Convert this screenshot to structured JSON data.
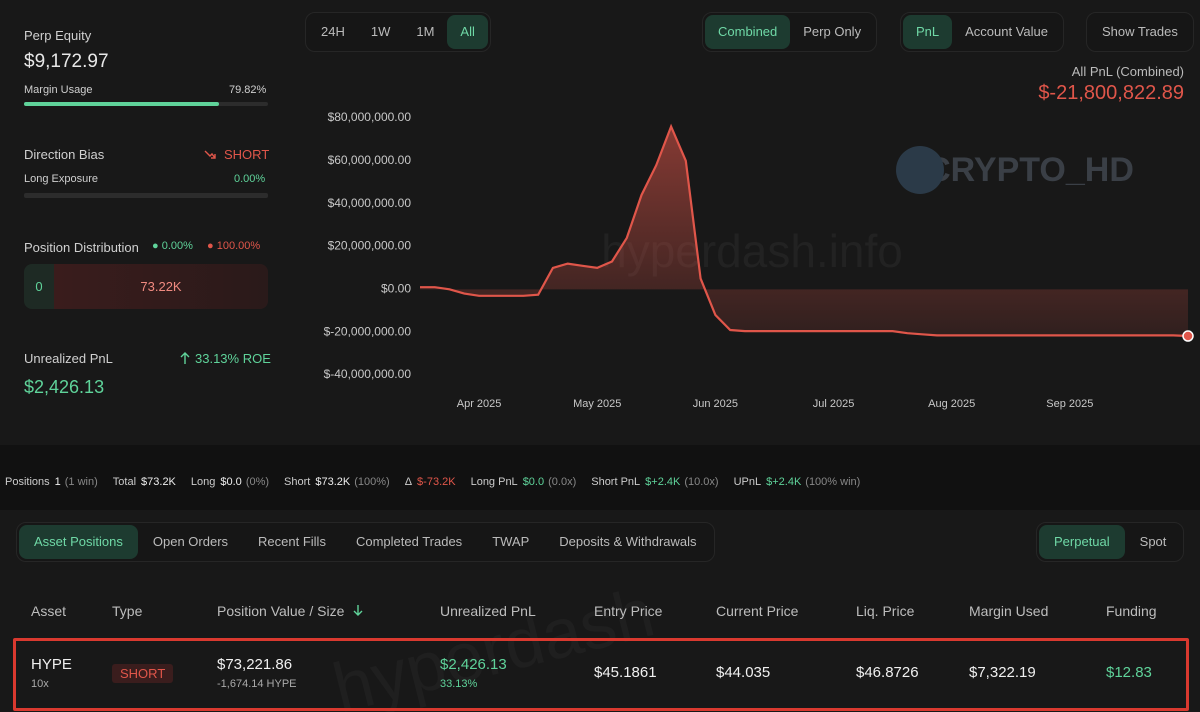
{
  "left": {
    "equity_label": "Perp Equity",
    "equity": "$9,172.97",
    "margin_label": "Margin Usage",
    "margin_usage": {
      "value": 79.82,
      "label": "79.82%"
    },
    "bias_label": "Direction Bias",
    "bias": "SHORT",
    "long_exposure_label": "Long Exposure",
    "long_exposure": {
      "value": 0,
      "label": "0.00%"
    },
    "distribution_label": "Position Distribution",
    "long_share": {
      "value": 0,
      "label": "0.00%"
    },
    "short_share": {
      "value": 100,
      "label": "100.00%"
    },
    "long_size": "0",
    "short_size": "73.22K",
    "upnl_label": "Unrealized PnL",
    "roe": "33.13% ROE",
    "upnl": "$2,426.13"
  },
  "controls": {
    "ranges": [
      "24H",
      "1W",
      "1M",
      "All"
    ],
    "active_range": 3,
    "modes": [
      "Combined",
      "Perp Only"
    ],
    "active_mode": 0,
    "metrics": [
      "PnL",
      "Account Value"
    ],
    "active_metric": 0,
    "show_trades": "Show Trades"
  },
  "chart_data": {
    "type": "line",
    "subtitle": "All PnL (Combined)",
    "headline": "$-21,800,822.89",
    "watermarks": [
      "CRYPTO_HD",
      "hyperdash.info"
    ],
    "color": "#e0564a",
    "categories": [
      null,
      null,
      null,
      null,
      "Apr 2025",
      null,
      null,
      null,
      null,
      null,
      null,
      null,
      "May 2025",
      null,
      null,
      null,
      null,
      null,
      null,
      null,
      "Jun 2025",
      null,
      null,
      null,
      null,
      null,
      null,
      null,
      "Jul 2025",
      null,
      null,
      null,
      null,
      null,
      null,
      null,
      "Aug 2025",
      null,
      null,
      null,
      null,
      null,
      null,
      null,
      "Sep 2025",
      null,
      null,
      null,
      null,
      null,
      null,
      null,
      null
    ],
    "values": [
      1000000,
      1000000,
      0,
      -2000000,
      -3000000,
      -3000000,
      -3000000,
      -3000000,
      -2500000,
      10000000,
      12000000,
      11000000,
      10000000,
      13000000,
      24000000,
      44000000,
      58000000,
      76000000,
      60000000,
      5000000,
      -12000000,
      -19000000,
      -19500000,
      -19500000,
      -19500000,
      -19500000,
      -19500000,
      -19500000,
      -19500000,
      -19500000,
      -19500000,
      -19500000,
      -19500000,
      -20500000,
      -21000000,
      -21500000,
      -21500000,
      -21500000,
      -21500000,
      -21500000,
      -21500000,
      -21500000,
      -21500000,
      -21500000,
      -21500000,
      -21500000,
      -21500000,
      -21500000,
      -21500000,
      -21500000,
      -21500000,
      -21500000,
      -21800000
    ],
    "ylim": [
      -40000000,
      80000000
    ],
    "yticks": [
      {
        "value": 80000000,
        "label": "$80,000,000.00"
      },
      {
        "value": 60000000,
        "label": "$60,000,000.00"
      },
      {
        "value": 40000000,
        "label": "$40,000,000.00"
      },
      {
        "value": 20000000,
        "label": "$20,000,000.00"
      },
      {
        "value": 0,
        "label": "$0.00"
      },
      {
        "value": -20000000,
        "label": "$-20,000,000.00"
      },
      {
        "value": -40000000,
        "label": "$-40,000,000.00"
      }
    ]
  },
  "summary": [
    {
      "label": "Positions",
      "value": "1",
      "note": "(1 win)"
    },
    {
      "label": "Total",
      "value": "$73.2K"
    },
    {
      "label": "Long",
      "value": "$0.0",
      "note": "(0%)"
    },
    {
      "label": "Short",
      "value": "$73.2K",
      "note": "(100%)"
    },
    {
      "label": "Δ",
      "value": "$-73.2K",
      "color": "#e0564a"
    },
    {
      "label": "Long PnL",
      "value": "$0.0",
      "note": "(0.0x)",
      "color": "#5fd39a"
    },
    {
      "label": "Short PnL",
      "value": "$+2.4K",
      "note": "(10.0x)",
      "color": "#5fd39a"
    },
    {
      "label": "UPnL",
      "value": "$+2.4K",
      "note": "(100% win)",
      "color": "#5fd39a"
    }
  ],
  "tabs": {
    "items": [
      "Asset Positions",
      "Open Orders",
      "Recent Fills",
      "Completed Trades",
      "TWAP",
      "Deposits & Withdrawals"
    ],
    "active": 0,
    "markets": [
      "Perpetual",
      "Spot"
    ],
    "active_market": 0
  },
  "table": {
    "watermark": "hyperdash",
    "headers": [
      "Asset",
      "Type",
      "Position Value / Size",
      "Unrealized PnL",
      "Entry Price",
      "Current Price",
      "Liq. Price",
      "Margin Used",
      "Funding"
    ],
    "rows": [
      [
        {
          "text": "HYPE",
          "sub": "10x"
        },
        {
          "text": "SHORT"
        },
        {
          "text": "$73,221.86",
          "sub": "-1,674.14 HYPE"
        },
        {
          "text": "$2,426.13",
          "sub": "33.13%"
        },
        {
          "text": "$45.1861"
        },
        {
          "text": "$44.035"
        },
        {
          "text": "$46.8726"
        },
        {
          "text": "$7,322.19"
        },
        {
          "text": "$12.83"
        }
      ]
    ]
  }
}
